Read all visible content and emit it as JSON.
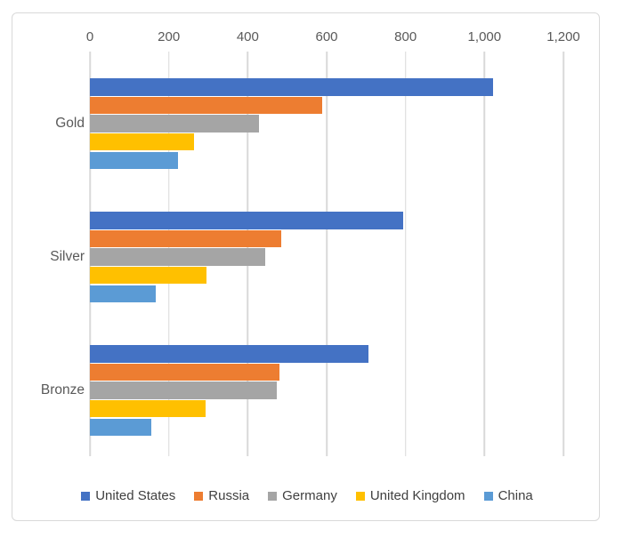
{
  "chart_data": {
    "type": "bar",
    "orientation": "horizontal",
    "title": "",
    "xlabel": "",
    "ylabel": "",
    "categories": [
      "Gold",
      "Silver",
      "Bronze"
    ],
    "series": [
      {
        "name": "United States",
        "color": "#4472C4",
        "values": [
          1022,
          795,
          705
        ]
      },
      {
        "name": "Russia",
        "color": "#ED7D31",
        "values": [
          589,
          486,
          481
        ]
      },
      {
        "name": "Germany",
        "color": "#A5A5A5",
        "values": [
          428,
          444,
          474
        ]
      },
      {
        "name": "United Kingdom",
        "color": "#FFC000",
        "values": [
          263,
          295,
          293
        ]
      },
      {
        "name": "China",
        "color": "#5B9BD5",
        "values": [
          224,
          167,
          155
        ]
      }
    ],
    "x_ticks": [
      "0",
      "200",
      "400",
      "600",
      "800",
      "1,000",
      "1,200"
    ],
    "xlim": [
      0,
      1200
    ],
    "grid": true,
    "axis_position": "top",
    "legend_position": "bottom"
  },
  "style_colors": {
    "gridline": "#D9D9D9",
    "frame_border": "#D9D9D9",
    "axis_text": "#595959",
    "category_text": "#595959",
    "legend_text": "#404040",
    "background": "#FFFFFF"
  }
}
